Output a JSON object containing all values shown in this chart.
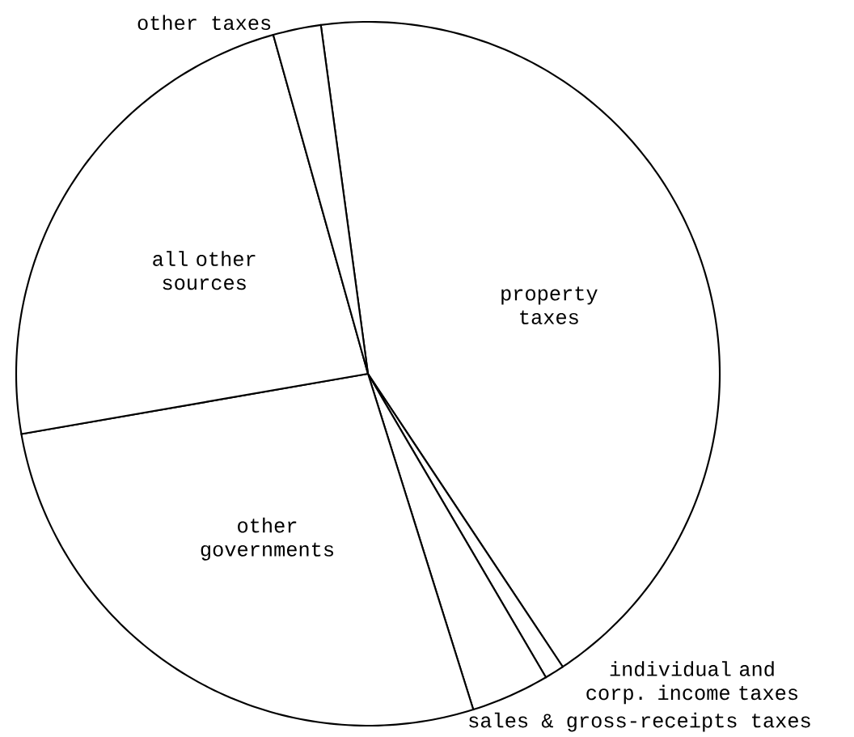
{
  "chart_data": {
    "type": "pie",
    "categories": [
      "property taxes",
      "individual and corp. income taxes",
      "sales & gross-receipts taxes",
      "other governments",
      "all other sources",
      "other taxes"
    ],
    "values": [
      42.8,
      0.9,
      3.6,
      27.1,
      23.4,
      2.2
    ],
    "colors": [
      "#ffffff",
      "#ffffff",
      "#ffffff",
      "#ffffff",
      "#ffffff",
      "#ffffff"
    ]
  }
}
